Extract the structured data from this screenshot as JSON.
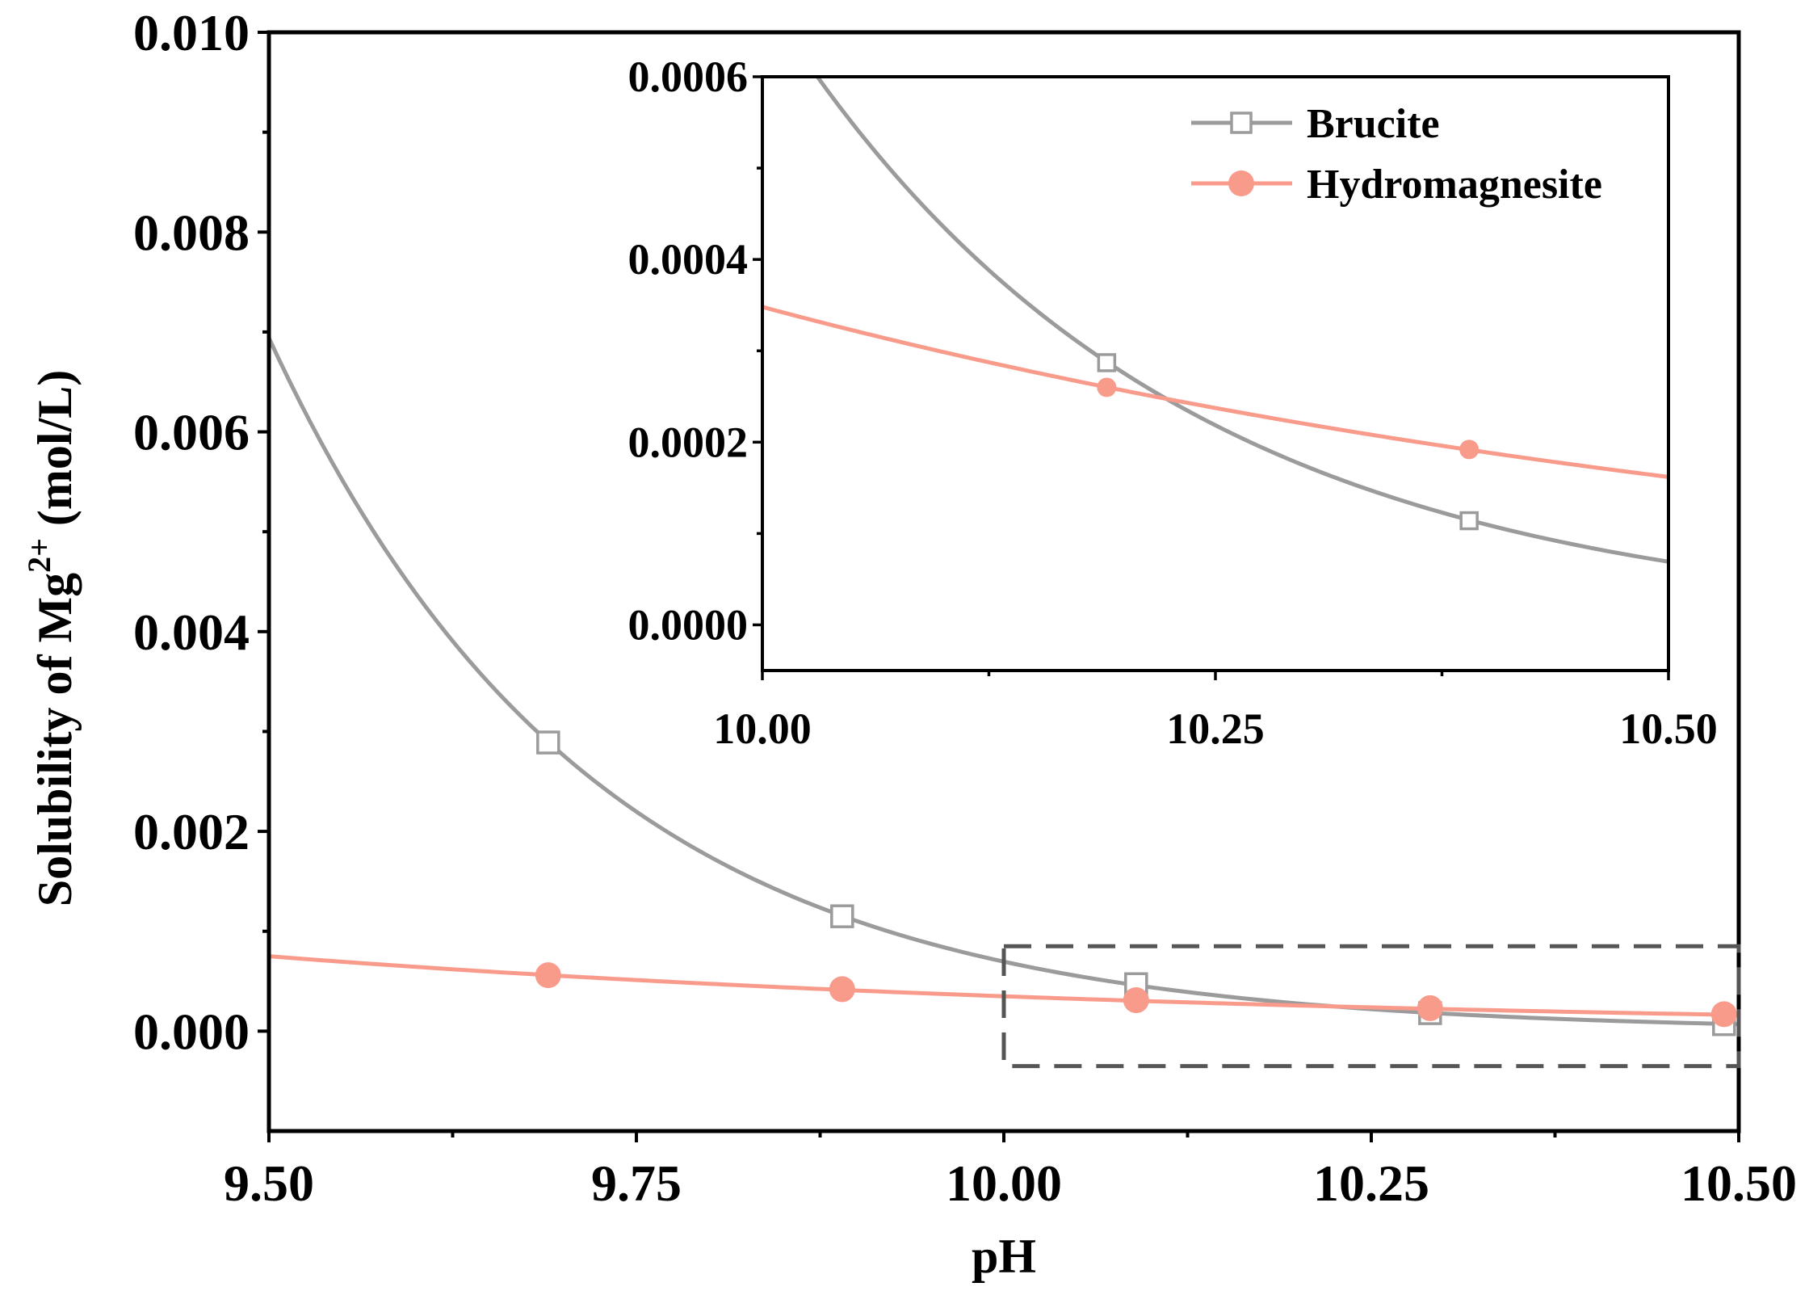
{
  "chart_data": [
    {
      "id": "main",
      "type": "line",
      "xlabel": "pH",
      "ylabel_base": "Solubility of Mg",
      "ylabel_sup": "2+",
      "ylabel_unit": " (mol/L)",
      "xlim": [
        9.5,
        10.5
      ],
      "ylim": [
        -0.001,
        0.01
      ],
      "xticks": [
        9.5,
        9.75,
        10.0,
        10.25,
        10.5
      ],
      "xtick_labels": [
        "9.50",
        "9.75",
        "10.00",
        "10.25",
        "10.50"
      ],
      "yticks": [
        0.0,
        0.002,
        0.004,
        0.006,
        0.008,
        0.01
      ],
      "ytick_labels": [
        "0.000",
        "0.002",
        "0.004",
        "0.006",
        "0.008",
        "0.010"
      ],
      "zoom_box": {
        "x": [
          10.0,
          10.5
        ],
        "y": [
          -0.00035,
          0.00085
        ]
      },
      "series": [
        {
          "name": "Brucite",
          "color": "#9b9b9b",
          "marker": "open-square",
          "curve": {
            "x": [
              9.5,
              10.5
            ],
            "a": 0.00694,
            "k": 4.6
          },
          "points": [
            {
              "x": 9.69,
              "y": 0.00289
            },
            {
              "x": 9.89,
              "y": 0.00115
            },
            {
              "x": 10.09,
              "y": 0.00047
            },
            {
              "x": 10.29,
              "y": 0.00018
            },
            {
              "x": 10.49,
              "y": 7e-05
            }
          ]
        },
        {
          "name": "Hydromagnesite",
          "color": "#f99b8b",
          "marker": "filled-circle",
          "curve": {
            "x": [
              9.5,
              10.5
            ],
            "a": 0.00075,
            "k": 1.53
          },
          "points": [
            {
              "x": 9.69,
              "y": 0.00056
            },
            {
              "x": 9.89,
              "y": 0.00042
            },
            {
              "x": 10.09,
              "y": 0.00031
            },
            {
              "x": 10.29,
              "y": 0.00023
            },
            {
              "x": 10.49,
              "y": 0.00017
            }
          ]
        }
      ]
    },
    {
      "id": "inset",
      "type": "line",
      "xlim": [
        10.0,
        10.5
      ],
      "ylim": [
        -5e-05,
        0.0006
      ],
      "xticks": [
        10.0,
        10.25,
        10.5
      ],
      "xtick_labels": [
        "10.00",
        "10.25",
        "10.50"
      ],
      "yticks": [
        0.0,
        0.0002,
        0.0004,
        0.0006
      ],
      "ytick_labels": [
        "0.0000",
        "0.0002",
        "0.0004",
        "0.0006"
      ],
      "legend_position": "top-right",
      "series": [
        {
          "name": "Brucite",
          "color": "#9b9b9b",
          "marker": "open-square",
          "curve": {
            "x": [
              10.0,
              10.5
            ],
            "a": 0.00069,
            "k": 4.6
          },
          "points": [
            {
              "x": 10.19,
              "y": 0.000287
            },
            {
              "x": 10.39,
              "y": 0.000114
            }
          ]
        },
        {
          "name": "Hydromagnesite",
          "color": "#f99b8b",
          "marker": "filled-circle",
          "curve": {
            "x": [
              10.0,
              10.5
            ],
            "a": 0.000348,
            "k": 1.53
          },
          "points": [
            {
              "x": 10.19,
              "y": 0.00026
            },
            {
              "x": 10.39,
              "y": 0.000192
            }
          ]
        }
      ]
    }
  ]
}
